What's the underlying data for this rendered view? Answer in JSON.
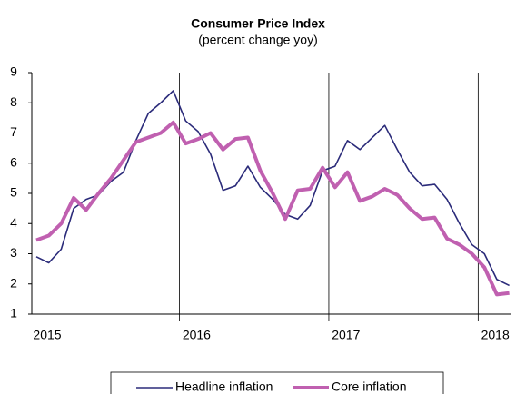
{
  "chart_data": {
    "type": "line",
    "title": "Consumer Price Index",
    "subtitle": "(percent change yoy)",
    "categories": [
      "2015",
      null,
      null,
      null,
      null,
      null,
      null,
      null,
      null,
      null,
      null,
      null,
      "2016",
      null,
      null,
      null,
      null,
      null,
      null,
      null,
      null,
      null,
      null,
      null,
      "2017",
      null,
      null,
      null,
      null,
      null,
      null,
      null,
      null,
      null,
      null,
      null,
      "2018",
      null,
      null
    ],
    "series": [
      {
        "name": "Headline inflation",
        "color": "#2b2b7a",
        "values": [
          2.9,
          2.7,
          3.15,
          4.5,
          4.8,
          4.95,
          5.4,
          5.7,
          6.75,
          7.65,
          8.0,
          8.4,
          7.4,
          7.05,
          6.3,
          5.1,
          5.25,
          5.9,
          5.2,
          4.8,
          4.3,
          4.15,
          4.6,
          5.75,
          5.9,
          6.75,
          6.45,
          6.85,
          7.25,
          6.45,
          5.7,
          5.25,
          5.3,
          4.8,
          4.0,
          3.3,
          3.0,
          2.15,
          1.95
        ]
      },
      {
        "name": "Core inflation",
        "color": "#c060b0",
        "values": [
          3.45,
          3.6,
          4.0,
          4.85,
          4.45,
          5.0,
          5.5,
          6.1,
          6.7,
          6.85,
          7.0,
          7.35,
          6.65,
          6.8,
          7.0,
          6.45,
          6.8,
          6.85,
          5.75,
          5.0,
          4.15,
          5.1,
          5.15,
          5.85,
          5.2,
          5.7,
          4.75,
          4.9,
          5.15,
          4.95,
          4.5,
          4.15,
          4.2,
          3.5,
          3.3,
          3.0,
          2.55,
          1.65,
          1.7
        ]
      }
    ],
    "ylim": [
      1,
      9
    ],
    "yticks": [
      1,
      2,
      3,
      4,
      5,
      6,
      7,
      8,
      9
    ],
    "legend": "bottom"
  }
}
